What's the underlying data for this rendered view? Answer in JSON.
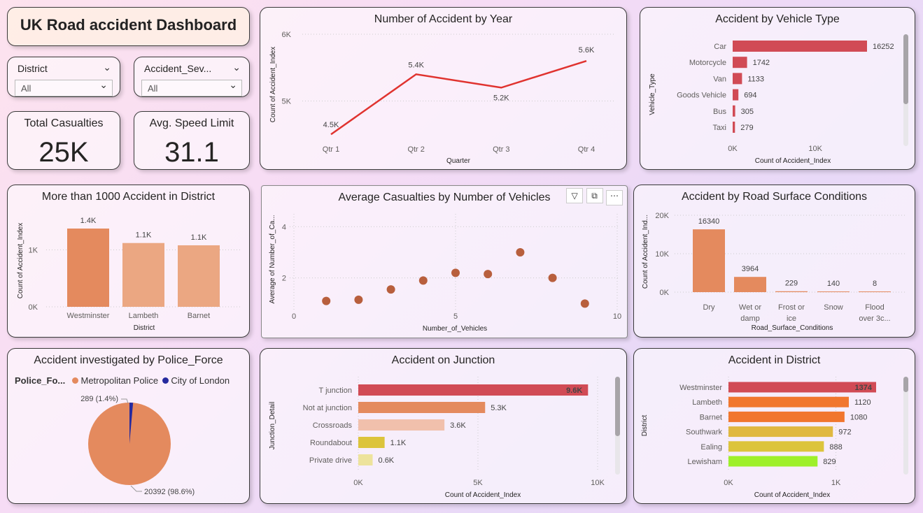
{
  "dashboard": {
    "title": "UK Road accident Dashboard"
  },
  "slicers": [
    {
      "label": "District",
      "value": "All"
    },
    {
      "label": "Accident_Sev...",
      "value": "All"
    }
  ],
  "kpis": [
    {
      "label": "Total Casualties",
      "value": "25K"
    },
    {
      "label": "Avg. Speed Limit",
      "value": "31.1"
    }
  ],
  "colors": {
    "red": "#d14b55",
    "orange": "#e48a5e",
    "peach": "#eba782",
    "line": "#e0332f",
    "dot": "#b85f3d",
    "pie_main": "#e48a5e",
    "pie_minor": "#262a9e"
  },
  "chart_data": [
    {
      "id": "by_year",
      "type": "line",
      "title": "Number of Accident by Year",
      "xlabel": "Quarter",
      "ylabel": "Count of Accident_Index",
      "categories": [
        "Qtr 1",
        "Qtr 2",
        "Qtr 3",
        "Qtr 4"
      ],
      "values": [
        4.5,
        5.4,
        5.2,
        5.6
      ],
      "data_labels": [
        "4.5K",
        "5.4K",
        "5.2K",
        "5.6K"
      ],
      "yticks": [
        "5K",
        "6K"
      ],
      "ylim": [
        4.45,
        6.0
      ]
    },
    {
      "id": "vehicle_type",
      "type": "bar",
      "orientation": "horizontal",
      "title": "Accident by Vehicle Type",
      "xlabel": "Count of Accident_Index",
      "ylabel": "Vehicle_Type",
      "categories": [
        "Car",
        "Motorcycle",
        "Van",
        "Goods Vehicle",
        "Bus",
        "Taxi"
      ],
      "values": [
        16252,
        1742,
        1133,
        694,
        305,
        279
      ],
      "xticks": [
        "0K",
        "10K"
      ],
      "xlim": [
        0,
        16252
      ]
    },
    {
      "id": "district_1000",
      "type": "bar",
      "title": "More than 1000 Accident in District",
      "xlabel": "District",
      "ylabel": "Count of Accident_Index",
      "categories": [
        "Westminster",
        "Lambeth",
        "Barnet"
      ],
      "values": [
        1374,
        1120,
        1080
      ],
      "data_labels": [
        "1.4K",
        "1.1K",
        "1.1K"
      ],
      "yticks": [
        "0K",
        "1K"
      ],
      "ylim": [
        0,
        1374
      ]
    },
    {
      "id": "avg_casualties",
      "type": "scatter",
      "title": "Average Casualties by Number of Vehicles",
      "xlabel": "Number_of_Vehicles",
      "ylabel": "Average of Number_of_Ca...",
      "x": [
        1,
        2,
        3,
        4,
        5,
        6,
        7,
        8,
        9
      ],
      "y": [
        1.1,
        1.15,
        1.55,
        1.9,
        2.2,
        2.15,
        3.0,
        2.0,
        1.0
      ],
      "xticks": [
        "0",
        "5",
        "10"
      ],
      "yticks": [
        "2",
        "4"
      ],
      "xlim": [
        0,
        10
      ],
      "ylim": [
        0.9,
        4.5
      ]
    },
    {
      "id": "road_surface",
      "type": "bar",
      "title": "Accident by Road Surface Conditions",
      "xlabel": "Road_Surface_Conditions",
      "ylabel": "Count of Accident_Ind...",
      "categories": [
        [
          "Dry"
        ],
        [
          "Wet or",
          "damp"
        ],
        [
          "Frost or",
          "ice"
        ],
        [
          "Snow"
        ],
        [
          "Flood",
          "over 3c..."
        ]
      ],
      "values": [
        16340,
        3964,
        229,
        140,
        8
      ],
      "data_labels": [
        "16340",
        "3964",
        "229",
        "140",
        "8"
      ],
      "yticks": [
        "0K",
        "10K",
        "20K"
      ],
      "ylim": [
        0,
        20000
      ]
    },
    {
      "id": "police_force",
      "type": "pie",
      "title": "Accident investigated by Police_Force",
      "legend_title": "Police_Fo...",
      "categories": [
        "Metropolitan Police",
        "City of London"
      ],
      "values": [
        20392,
        289
      ],
      "data_labels": [
        "20392 (98.6%)",
        "289 (1.4%)"
      ]
    },
    {
      "id": "junction",
      "type": "bar",
      "orientation": "horizontal",
      "title": "Accident on Junction",
      "xlabel": "Count of Accident_Index",
      "ylabel": "Junction_Detail",
      "categories": [
        "T junction",
        "Not at junction",
        "Crossroads",
        "Roundabout",
        "Private drive"
      ],
      "values": [
        9.6,
        5.3,
        3.6,
        1.1,
        0.6
      ],
      "data_labels": [
        "9.6K",
        "5.3K",
        "3.6K",
        "1.1K",
        "0.6K"
      ],
      "xticks": [
        "0K",
        "5K",
        "10K"
      ],
      "xlim": [
        0,
        10
      ]
    },
    {
      "id": "district",
      "type": "bar",
      "orientation": "horizontal",
      "title": "Accident in District",
      "xlabel": "Count of Accident_Index",
      "ylabel": "District",
      "categories": [
        "Westminster",
        "Lambeth",
        "Barnet",
        "Southwark",
        "Ealing",
        "Lewisham"
      ],
      "values": [
        1374,
        1120,
        1080,
        972,
        888,
        829
      ],
      "data_labels": [
        "1374",
        "1120",
        "1080",
        "972",
        "888",
        "829"
      ],
      "xticks": [
        "0K",
        "1K"
      ],
      "xlim": [
        0,
        1374
      ]
    }
  ]
}
